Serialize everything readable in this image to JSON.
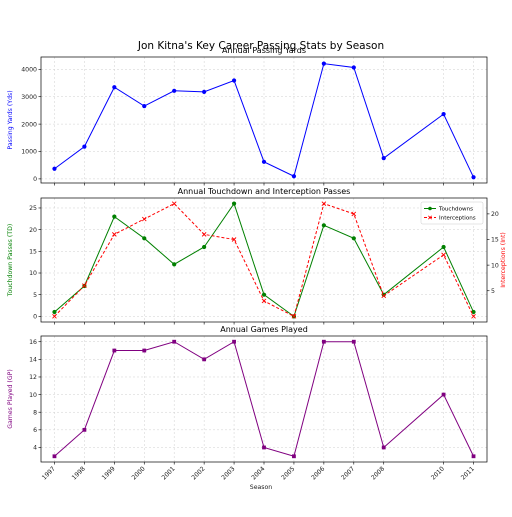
{
  "chart_data": {
    "type": "line",
    "title": "Jon Kitna's Key Career Passing Stats by Season",
    "xlabel": "Season",
    "x": [
      1997,
      1998,
      1999,
      2000,
      2001,
      2002,
      2003,
      2004,
      2005,
      2006,
      2007,
      2008,
      2010,
      2011
    ],
    "x_tick_labels": [
      "1997",
      "1998",
      "1999",
      "2000",
      "2001",
      "2002",
      "2003",
      "2004",
      "2005",
      "2006",
      "2007",
      "2008",
      "2010",
      "2011"
    ],
    "grid": true,
    "panels": [
      {
        "title": "Annual Passing Yards",
        "ylabel": "Passing Yards (Yds)",
        "ylim": [
          -150,
          4450
        ],
        "yticks": [
          0,
          1000,
          2000,
          3000,
          4000
        ],
        "series": [
          {
            "name": "",
            "color": "#0000ff",
            "marker": "circle",
            "values": [
              371,
              1177,
              3346,
              2658,
              3216,
              3178,
              3591,
              623,
              97,
              4208,
              4068,
              758,
              2365,
              59
            ]
          }
        ]
      },
      {
        "title": "Annual Touchdown and Interception Passes",
        "ylabel": "Touchdown Passes (TD)",
        "ylabel_right": "Interceptions (Int)",
        "ylim": [
          -1.3,
          27.3
        ],
        "yticks": [
          0,
          5,
          10,
          15,
          20,
          25
        ],
        "ylim_right": [
          -1.1,
          23.1
        ],
        "yticks_right": [
          5,
          10,
          15,
          20
        ],
        "legend_position": "top-right",
        "series": [
          {
            "name": "Touchdowns",
            "color": "#008000",
            "marker": "circle",
            "axis": "left",
            "values": [
              1,
              7,
              23,
              18,
              12,
              16,
              26,
              5,
              0,
              21,
              18,
              5,
              16,
              1
            ]
          },
          {
            "name": "Interceptions",
            "color": "#ff0000",
            "marker": "x",
            "dashed": true,
            "axis": "right",
            "values": [
              0,
              6,
              16,
              19,
              22,
              16,
              15,
              3,
              0,
              22,
              20,
              4,
              12,
              0
            ]
          }
        ]
      },
      {
        "title": "Annual Games Played",
        "ylabel": "Games Played (GP)",
        "ylim": [
          2.35,
          16.65
        ],
        "yticks": [
          4,
          6,
          8,
          10,
          12,
          14,
          16
        ],
        "series": [
          {
            "name": "",
            "color": "#800080",
            "marker": "square",
            "values": [
              3,
              6,
              15,
              15,
              16,
              14,
              16,
              4,
              3,
              16,
              16,
              4,
              10,
              3
            ]
          }
        ]
      }
    ]
  }
}
